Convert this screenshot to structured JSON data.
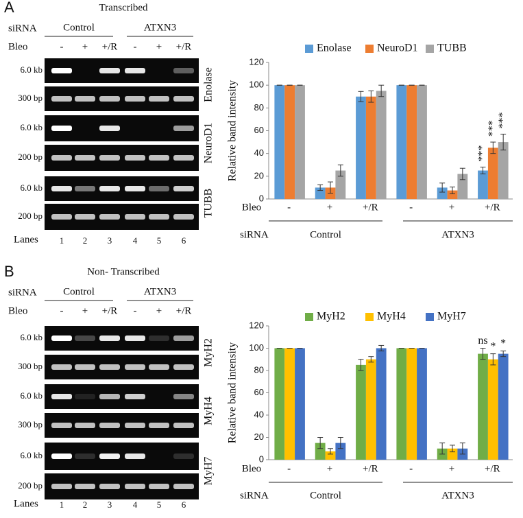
{
  "gels": [
    {
      "panel": "A",
      "title": "Transcribed",
      "sirna_label": "siRNA",
      "groups": [
        "Control",
        "ATXN3"
      ],
      "bleo_label": "Bleo",
      "bleo": [
        "-",
        "+",
        "+/R",
        "-",
        "+",
        "+/R"
      ],
      "genes": [
        {
          "name": "Enolase",
          "markers": [
            "6.0 kb",
            "300 bp"
          ]
        },
        {
          "name": "NeuroD1",
          "markers": [
            "6.0 kb",
            "200 bp"
          ]
        },
        {
          "name": "TUBB",
          "markers": [
            "6.0 kb",
            "200 bp"
          ]
        }
      ],
      "lanes_label": "Lanes",
      "lanes": [
        "1",
        "2",
        "3",
        "4",
        "5",
        "6"
      ]
    },
    {
      "panel": "B",
      "title": "Non- Transcribed",
      "sirna_label": "siRNA",
      "groups": [
        "Control",
        "ATXN3"
      ],
      "bleo_label": "Bleo",
      "bleo": [
        "-",
        "+",
        "+/R",
        "-",
        "+",
        "+/R"
      ],
      "genes": [
        {
          "name": "MyH2",
          "markers": [
            "6.0 kb",
            "300 bp"
          ]
        },
        {
          "name": "MyH4",
          "markers": [
            "6.0 kb",
            "300 bp"
          ]
        },
        {
          "name": "MyH7",
          "markers": [
            "6.0 kb",
            "200 bp"
          ]
        }
      ],
      "lanes_label": "Lanes",
      "lanes": [
        "1",
        "2",
        "3",
        "4",
        "5",
        "6"
      ]
    }
  ],
  "chart_data": [
    {
      "type": "bar",
      "y_label": "Relative band intensity",
      "category_label": "Bleo",
      "categories": [
        "-",
        "+",
        "+/R",
        "-",
        "+",
        "+/R"
      ],
      "group_label": "siRNA",
      "groups": [
        "Control",
        "ATXN3"
      ],
      "ylim": [
        0,
        120
      ],
      "yticks": [
        0,
        20,
        40,
        60,
        80,
        100,
        120
      ],
      "legend": "top",
      "series": [
        {
          "name": "Enolase",
          "color": "#5b9bd5",
          "values": [
            100,
            10,
            90,
            100,
            10,
            25
          ],
          "errors": [
            0,
            2.5,
            4.5,
            0,
            4,
            3
          ],
          "significance": [
            null,
            null,
            null,
            null,
            null,
            "***"
          ]
        },
        {
          "name": "NeuroD1",
          "color": "#ed7d31",
          "values": [
            100,
            10,
            90,
            100,
            7.5,
            45
          ],
          "errors": [
            0,
            5,
            5,
            0,
            3,
            5
          ],
          "significance": [
            null,
            null,
            null,
            null,
            null,
            "***"
          ]
        },
        {
          "name": "TUBB",
          "color": "#a5a5a5",
          "values": [
            100,
            25,
            95,
            100,
            22,
            50
          ],
          "errors": [
            0,
            5,
            5,
            0,
            5,
            7
          ],
          "significance": [
            null,
            null,
            null,
            null,
            null,
            "***"
          ]
        }
      ]
    },
    {
      "type": "bar",
      "y_label": "Relative band intensity",
      "category_label": "Bleo",
      "categories": [
        "-",
        "+",
        "+/R",
        "-",
        "+",
        "+/R"
      ],
      "group_label": "siRNA",
      "groups": [
        "Control",
        "ATXN3"
      ],
      "ylim": [
        0,
        120
      ],
      "yticks": [
        0,
        20,
        40,
        60,
        80,
        100,
        120
      ],
      "legend": "top",
      "series": [
        {
          "name": "MyH2",
          "color": "#70ad47",
          "values": [
            100,
            15,
            85,
            100,
            10,
            95
          ],
          "errors": [
            0,
            5,
            5,
            0,
            5,
            5
          ],
          "significance": [
            null,
            null,
            null,
            null,
            null,
            "ns"
          ]
        },
        {
          "name": "MyH4",
          "color": "#ffc000",
          "values": [
            100,
            7.5,
            90,
            100,
            10,
            90
          ],
          "errors": [
            0,
            2.5,
            2.5,
            0,
            3,
            5
          ],
          "significance": [
            null,
            null,
            null,
            null,
            null,
            "*"
          ]
        },
        {
          "name": "MyH7",
          "color": "#4472c4",
          "values": [
            100,
            15,
            100,
            100,
            10,
            95
          ],
          "errors": [
            0,
            5,
            2.5,
            0,
            5,
            2.5
          ],
          "significance": [
            null,
            null,
            null,
            null,
            null,
            "*"
          ]
        }
      ]
    }
  ]
}
